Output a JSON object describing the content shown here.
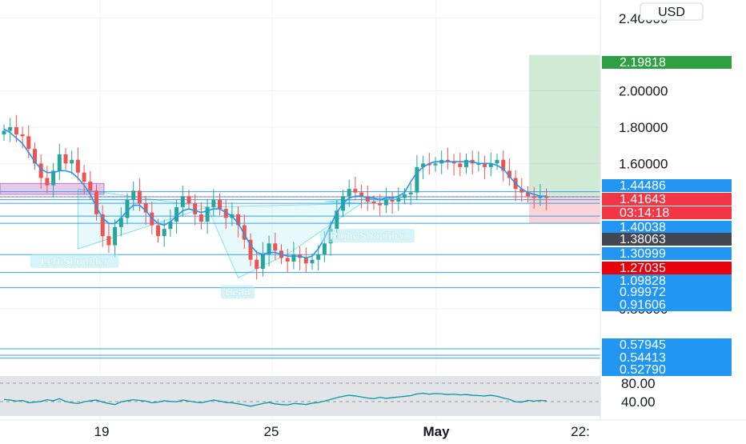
{
  "currency_label": "USD",
  "chart_data": [
    {
      "type": "candlestick",
      "title": "",
      "price_axis_ticks": [
        "2.40000",
        "2.00000",
        "1.80000",
        "1.60000",
        "0.80000"
      ],
      "time_axis_ticks": [
        "19",
        "25",
        "May",
        "22:"
      ],
      "ylim": [
        0.46,
        2.6
      ],
      "colors": {
        "up": "#26a69a",
        "down": "#ef5350",
        "ma": "#2196f3"
      },
      "candle_close": [
        1.78,
        1.8,
        1.76,
        1.75,
        1.68,
        1.6,
        1.52,
        1.48,
        1.56,
        1.65,
        1.6,
        1.62,
        1.55,
        1.5,
        1.45,
        1.32,
        1.2,
        1.15,
        1.25,
        1.3,
        1.4,
        1.45,
        1.38,
        1.33,
        1.26,
        1.2,
        1.24,
        1.28,
        1.36,
        1.42,
        1.38,
        1.32,
        1.28,
        1.36,
        1.4,
        1.35,
        1.3,
        1.32,
        1.26,
        1.18,
        1.07,
        1.02,
        1.1,
        1.16,
        1.12,
        1.08,
        1.06,
        1.1,
        1.08,
        1.05,
        1.07,
        1.1,
        1.16,
        1.24,
        1.34,
        1.42,
        1.46,
        1.44,
        1.42,
        1.39,
        1.38,
        1.37,
        1.4,
        1.39,
        1.41,
        1.43,
        1.44,
        1.58,
        1.6,
        1.59,
        1.6,
        1.62,
        1.61,
        1.6,
        1.58,
        1.62,
        1.6,
        1.6,
        1.58,
        1.6,
        1.62,
        1.56,
        1.52,
        1.46,
        1.44,
        1.42,
        1.41,
        1.42,
        1.41
      ],
      "moving_average": [
        1.79,
        1.77,
        1.74,
        1.71,
        1.66,
        1.61,
        1.57,
        1.55,
        1.55,
        1.56,
        1.56,
        1.55,
        1.52,
        1.48,
        1.43,
        1.36,
        1.3,
        1.27,
        1.27,
        1.3,
        1.34,
        1.37,
        1.37,
        1.34,
        1.3,
        1.27,
        1.26,
        1.28,
        1.31,
        1.34,
        1.35,
        1.34,
        1.33,
        1.34,
        1.35,
        1.35,
        1.33,
        1.31,
        1.27,
        1.21,
        1.15,
        1.11,
        1.1,
        1.11,
        1.11,
        1.1,
        1.09,
        1.09,
        1.09,
        1.08,
        1.09,
        1.13,
        1.19,
        1.26,
        1.33,
        1.38,
        1.41,
        1.42,
        1.42,
        1.41,
        1.41,
        1.4,
        1.41,
        1.41,
        1.42,
        1.44,
        1.5,
        1.55,
        1.58,
        1.6,
        1.61,
        1.61,
        1.61,
        1.61,
        1.61,
        1.61,
        1.61,
        1.6,
        1.6,
        1.6,
        1.59,
        1.57,
        1.53,
        1.49,
        1.46,
        1.44,
        1.43,
        1.42,
        1.42
      ],
      "horizontal_levels": [
        1.44486,
        1.41643,
        1.40038,
        1.38063,
        1.30999,
        1.27035,
        1.09828,
        0.99972,
        0.91606,
        0.57945,
        0.54413,
        0.5279
      ],
      "price_labels": [
        {
          "text": "2.19818",
          "color": "#2ea043"
        },
        {
          "text": "1.44486",
          "color": "#2196f3"
        },
        {
          "text": "1.41643",
          "color": "#f23645"
        },
        {
          "text": "03:14:18",
          "color": "#f23645"
        },
        {
          "text": "1.40038",
          "color": "#2196f3"
        },
        {
          "text": "1.38063",
          "color": "#434651"
        },
        {
          "text": "1.30999",
          "color": "#2196f3"
        },
        {
          "text": "1.27035",
          "color": "#e8000b"
        },
        {
          "text": "1.09828",
          "color": "#2196f3"
        },
        {
          "text": "0.99972",
          "color": "#2196f3"
        },
        {
          "text": "0.91606",
          "color": "#2196f3"
        },
        {
          "text": "0.57945",
          "color": "#2196f3"
        },
        {
          "text": "0.54413",
          "color": "#2196f3"
        },
        {
          "text": "0.52790",
          "color": "#2196f3"
        }
      ],
      "position_tool": {
        "entry": 1.41643,
        "target": 2.19818,
        "stop": 1.27035
      },
      "pattern_labels": [
        "Left Shoulder",
        "Head",
        "Right Shoulder"
      ]
    },
    {
      "type": "line",
      "title": "",
      "axis_ticks": [
        "80.00",
        "40.00"
      ],
      "ylim": [
        0,
        100
      ],
      "color": "#0097a7",
      "values": [
        46,
        44,
        41,
        43,
        36,
        38,
        40,
        45,
        42,
        48,
        40,
        36,
        34,
        39,
        42,
        44,
        38,
        34,
        31,
        39,
        42,
        45,
        43,
        41,
        36,
        38,
        42,
        40,
        39,
        44,
        41,
        38,
        36,
        40,
        44,
        41,
        37,
        36,
        33,
        30,
        26,
        30,
        34,
        37,
        33,
        31,
        30,
        34,
        33,
        31,
        35,
        37,
        41,
        46,
        51,
        55,
        58,
        56,
        53,
        50,
        48,
        52,
        49,
        51,
        53,
        55,
        57,
        62,
        64,
        61,
        63,
        62,
        60,
        61,
        59,
        60,
        58,
        57,
        56,
        58,
        55,
        50,
        46,
        39,
        38,
        43,
        41,
        43,
        42
      ]
    }
  ]
}
